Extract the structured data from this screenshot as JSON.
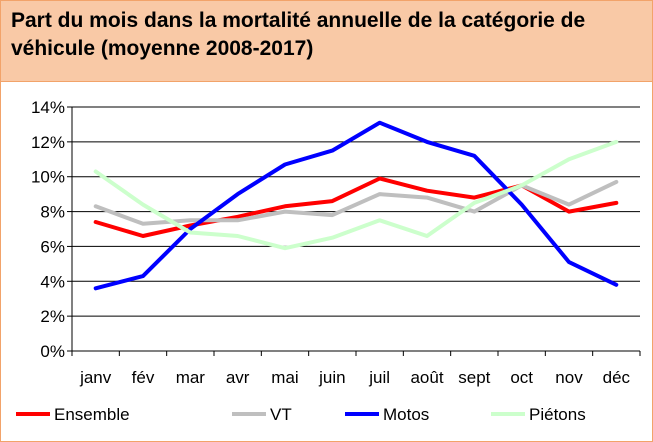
{
  "chart_data": {
    "type": "line",
    "title": "Part du mois dans la mortalité annuelle de la catégorie de véhicule (moyenne 2008-2017)",
    "categories": [
      "janv",
      "fév",
      "mar",
      "avr",
      "mai",
      "juin",
      "juil",
      "août",
      "sept",
      "oct",
      "nov",
      "déc"
    ],
    "ylim": [
      0,
      14
    ],
    "yticks": [
      "0%",
      "2%",
      "4%",
      "6%",
      "8%",
      "10%",
      "12%",
      "14%"
    ],
    "ytick_values": [
      0,
      2,
      4,
      6,
      8,
      10,
      12,
      14
    ],
    "grid": true,
    "legend_position": "bottom",
    "series": [
      {
        "name": "Ensemble",
        "color": "#ff0000",
        "values": [
          7.4,
          6.6,
          7.2,
          7.7,
          8.3,
          8.6,
          9.9,
          9.2,
          8.8,
          9.5,
          8.0,
          8.5
        ]
      },
      {
        "name": "VT",
        "color": "#bfbfbf",
        "values": [
          8.3,
          7.3,
          7.5,
          7.5,
          8.0,
          7.8,
          9.0,
          8.8,
          8.0,
          9.5,
          8.4,
          9.7
        ]
      },
      {
        "name": "Motos",
        "color": "#0000ff",
        "values": [
          3.6,
          4.3,
          7.0,
          9.0,
          10.7,
          11.5,
          13.1,
          12.0,
          11.2,
          8.4,
          5.1,
          3.8
        ]
      },
      {
        "name": "Piétons",
        "color": "#ccffcc",
        "values": [
          10.3,
          8.4,
          6.8,
          6.6,
          5.9,
          6.5,
          7.5,
          6.6,
          8.5,
          9.5,
          11.0,
          12.0
        ]
      }
    ]
  }
}
